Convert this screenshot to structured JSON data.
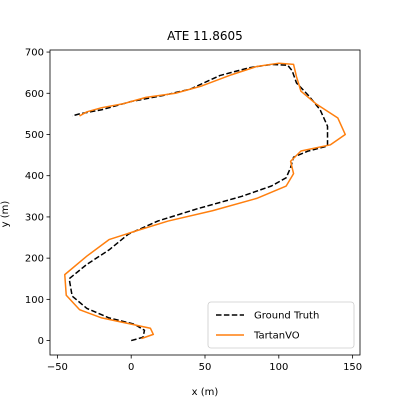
{
  "chart_data": {
    "type": "line",
    "title": "ATE 11.8605",
    "xlabel": "x (m)",
    "ylabel": "y (m)",
    "xlim": [
      -55,
      155
    ],
    "ylim": [
      -35,
      705
    ],
    "xticks": [
      -50,
      0,
      50,
      100,
      150
    ],
    "yticks": [
      0,
      100,
      200,
      300,
      400,
      500,
      600,
      700
    ],
    "grid": false,
    "legend_position": "lower-right",
    "series": [
      {
        "name": "Ground Truth",
        "color": "#000000",
        "linestyle": "dashed",
        "points": [
          [
            0,
            0
          ],
          [
            8,
            8
          ],
          [
            9,
            25
          ],
          [
            2,
            40
          ],
          [
            -15,
            55
          ],
          [
            -30,
            78
          ],
          [
            -40,
            108
          ],
          [
            -42,
            150
          ],
          [
            -30,
            185
          ],
          [
            -15,
            220
          ],
          [
            -2,
            258
          ],
          [
            18,
            290
          ],
          [
            45,
            320
          ],
          [
            75,
            350
          ],
          [
            95,
            375
          ],
          [
            105,
            395
          ],
          [
            108,
            420
          ],
          [
            110,
            445
          ],
          [
            120,
            460
          ],
          [
            133,
            472
          ],
          [
            133,
            520
          ],
          [
            128,
            560
          ],
          [
            120,
            595
          ],
          [
            112,
            625
          ],
          [
            109,
            655
          ],
          [
            106,
            668
          ],
          [
            95,
            670
          ],
          [
            80,
            662
          ],
          [
            60,
            643
          ],
          [
            40,
            610
          ],
          [
            22,
            595
          ],
          [
            0,
            580
          ],
          [
            -20,
            560
          ],
          [
            -35,
            550
          ],
          [
            -40,
            545
          ]
        ]
      },
      {
        "name": "TartanVO",
        "color": "#ff7f0e",
        "linestyle": "solid",
        "points": [
          [
            7,
            5
          ],
          [
            15,
            15
          ],
          [
            13,
            30
          ],
          [
            0,
            40
          ],
          [
            -20,
            55
          ],
          [
            -35,
            75
          ],
          [
            -44,
            110
          ],
          [
            -45,
            160
          ],
          [
            -30,
            205
          ],
          [
            -15,
            245
          ],
          [
            5,
            268
          ],
          [
            25,
            290
          ],
          [
            55,
            315
          ],
          [
            85,
            345
          ],
          [
            105,
            375
          ],
          [
            110,
            405
          ],
          [
            108,
            435
          ],
          [
            115,
            460
          ],
          [
            135,
            475
          ],
          [
            145,
            500
          ],
          [
            140,
            540
          ],
          [
            125,
            575
          ],
          [
            115,
            605
          ],
          [
            112,
            640
          ],
          [
            110,
            670
          ],
          [
            100,
            673
          ],
          [
            85,
            665
          ],
          [
            68,
            645
          ],
          [
            48,
            618
          ],
          [
            30,
            600
          ],
          [
            10,
            590
          ],
          [
            -5,
            575
          ],
          [
            -20,
            565
          ],
          [
            -30,
            555
          ],
          [
            -35,
            545
          ]
        ]
      }
    ]
  }
}
